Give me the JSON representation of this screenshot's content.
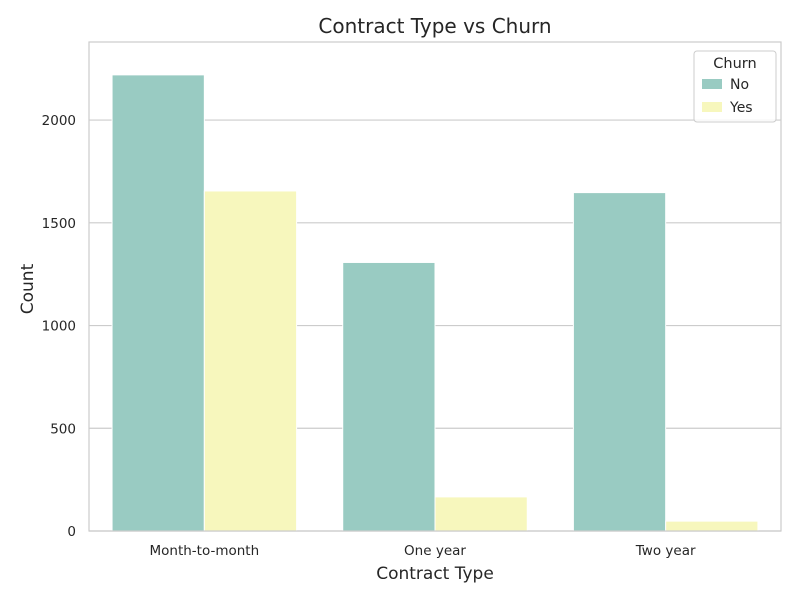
{
  "chart_data": {
    "type": "bar",
    "title": "Contract Type vs Churn",
    "xlabel": "Contract Type",
    "ylabel": "Count",
    "categories": [
      "Month-to-month",
      "One year",
      "Two year"
    ],
    "series": [
      {
        "name": "No",
        "values": [
          2220,
          1307,
          1647
        ]
      },
      {
        "name": "Yes",
        "values": [
          1655,
          166,
          48
        ]
      }
    ],
    "ylim": [
      0,
      2380
    ],
    "yticks": [
      0,
      500,
      1000,
      1500,
      2000
    ],
    "grid": true,
    "legend": {
      "title": "Churn",
      "placement": "top-right"
    }
  },
  "colors": {
    "series": [
      "#99cbc2",
      "#f7f7bd"
    ],
    "grid": "#cccccc",
    "axes_edge": "#cccccc",
    "text": "#262626"
  }
}
